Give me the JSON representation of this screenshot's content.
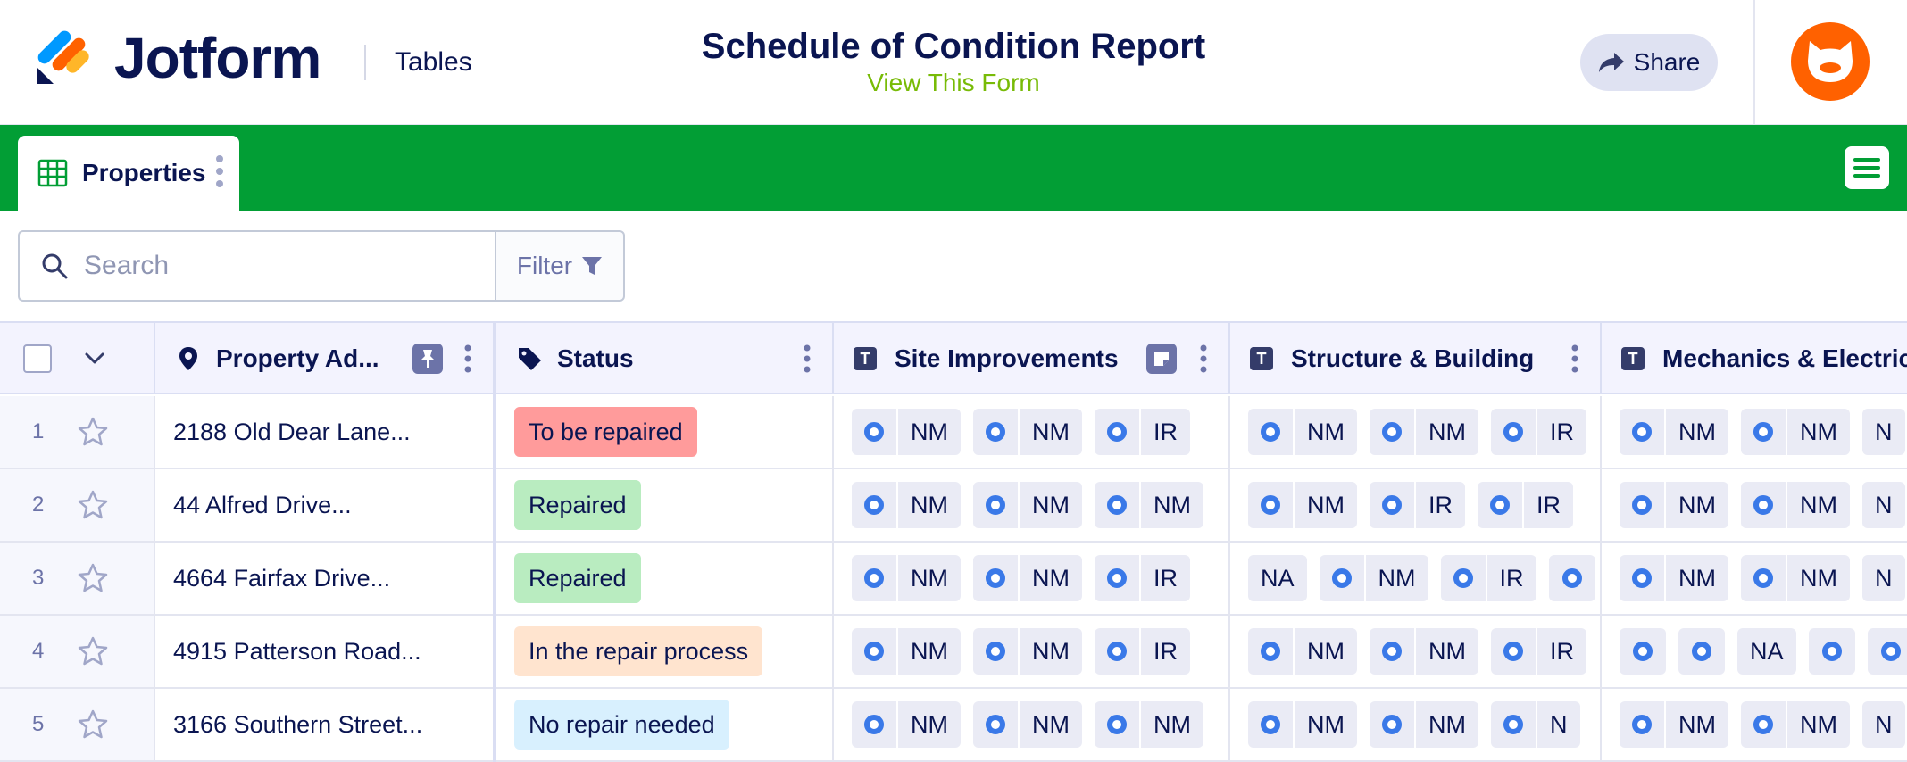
{
  "header": {
    "brand": "Jotform",
    "section": "Tables",
    "title": "Schedule of Condition Report",
    "view_form": "View This Form",
    "share_label": "Share"
  },
  "tabs": [
    {
      "label": "Properties"
    }
  ],
  "search": {
    "placeholder": "Search",
    "filter_label": "Filter"
  },
  "columns": [
    {
      "label": "Property Ad...",
      "icon": "location-pin-icon"
    },
    {
      "label": "Status",
      "icon": "tag-icon"
    },
    {
      "label": "Site Improvements",
      "icon": "text-type-icon"
    },
    {
      "label": "Structure & Building",
      "icon": "text-type-icon"
    },
    {
      "label": "Mechanics & Electric",
      "icon": "text-type-icon"
    }
  ],
  "colors": {
    "brand_green": "#029e35",
    "status_to_be_repaired": "#ff9b9b",
    "status_repaired": "#b9ecc0",
    "status_in_repair": "#ffe4cf",
    "status_no_repair": "#d8f0fe",
    "radio_blue": "#3a79e8",
    "avatar_orange": "#ff6100"
  },
  "rows": [
    {
      "num": "1",
      "address": "2188 Old Dear Lane...",
      "status": "To be repaired",
      "status_key": "status_to_be_repaired",
      "site": [
        {
          "r": true,
          "v": "NM"
        },
        {
          "r": true,
          "v": "NM"
        },
        {
          "r": true,
          "v": "IR"
        }
      ],
      "structure": [
        {
          "r": true,
          "v": "NM"
        },
        {
          "r": true,
          "v": "NM"
        },
        {
          "r": true,
          "v": "IR"
        }
      ],
      "mech": [
        {
          "r": true,
          "v": "NM"
        },
        {
          "r": true,
          "v": "NM"
        },
        {
          "r": false,
          "v": "N"
        }
      ]
    },
    {
      "num": "2",
      "address": "44 Alfred Drive...",
      "status": "Repaired",
      "status_key": "status_repaired",
      "site": [
        {
          "r": true,
          "v": "NM"
        },
        {
          "r": true,
          "v": "NM"
        },
        {
          "r": true,
          "v": "NM"
        }
      ],
      "structure": [
        {
          "r": true,
          "v": "NM"
        },
        {
          "r": true,
          "v": "IR"
        },
        {
          "r": true,
          "v": "IR"
        }
      ],
      "mech": [
        {
          "r": true,
          "v": "NM"
        },
        {
          "r": true,
          "v": "NM"
        },
        {
          "r": false,
          "v": "N"
        }
      ]
    },
    {
      "num": "3",
      "address": "4664 Fairfax Drive...",
      "status": "Repaired",
      "status_key": "status_repaired",
      "site": [
        {
          "r": true,
          "v": "NM"
        },
        {
          "r": true,
          "v": "NM"
        },
        {
          "r": true,
          "v": "IR"
        }
      ],
      "structure": [
        {
          "r": false,
          "v": "NA"
        },
        {
          "r": true,
          "v": "NM"
        },
        {
          "r": true,
          "v": "IR"
        },
        {
          "r": true,
          "v": ""
        }
      ],
      "mech": [
        {
          "r": true,
          "v": "NM"
        },
        {
          "r": true,
          "v": "NM"
        },
        {
          "r": false,
          "v": "N"
        }
      ]
    },
    {
      "num": "4",
      "address": "4915 Patterson Road...",
      "status": "In the repair process",
      "status_key": "status_in_repair",
      "site": [
        {
          "r": true,
          "v": "NM"
        },
        {
          "r": true,
          "v": "NM"
        },
        {
          "r": true,
          "v": "IR"
        }
      ],
      "structure": [
        {
          "r": true,
          "v": "NM"
        },
        {
          "r": true,
          "v": "NM"
        },
        {
          "r": true,
          "v": "IR"
        }
      ],
      "mech": [
        {
          "r": true,
          "v": ""
        },
        {
          "r": true,
          "v": ""
        },
        {
          "r": false,
          "v": "NA"
        },
        {
          "r": true,
          "v": ""
        },
        {
          "r": true,
          "v": ""
        }
      ]
    },
    {
      "num": "5",
      "address": "3166 Southern Street...",
      "status": "No repair needed",
      "status_key": "status_no_repair",
      "site": [
        {
          "r": true,
          "v": "NM"
        },
        {
          "r": true,
          "v": "NM"
        },
        {
          "r": true,
          "v": "NM"
        }
      ],
      "structure": [
        {
          "r": true,
          "v": "NM"
        },
        {
          "r": true,
          "v": "NM"
        },
        {
          "r": true,
          "v": "N"
        }
      ],
      "mech": [
        {
          "r": true,
          "v": "NM"
        },
        {
          "r": true,
          "v": "NM"
        },
        {
          "r": false,
          "v": "N"
        }
      ]
    }
  ]
}
